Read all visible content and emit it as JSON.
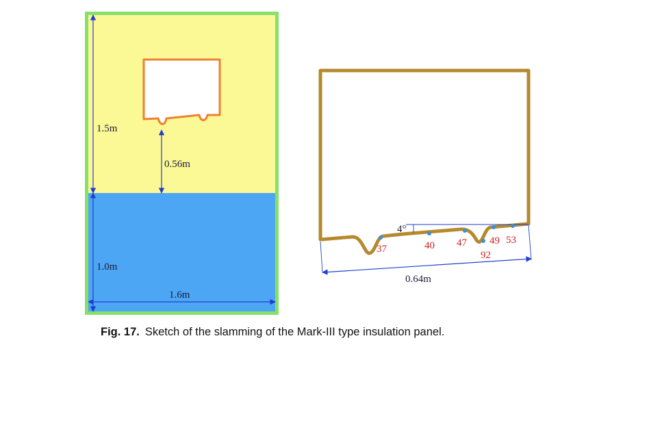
{
  "left_sketch": {
    "colors": {
      "border": "#86e06a",
      "air": "#fbf896",
      "water": "#4ca6f4",
      "panel_outline": "#f07f30",
      "dimension": "#1f3fd0"
    },
    "labels": {
      "tank_height_air": "1.5m",
      "drop_height": "0.56m",
      "water_depth": "1.0m",
      "tank_width": "1.6m"
    }
  },
  "right_sketch": {
    "colors": {
      "panel_outline": "#b5892d",
      "sensor_point": "#3b8fd6",
      "dimension": "#1f3fd0"
    },
    "labels": {
      "angle": "4°",
      "panel_width": "0.64m"
    },
    "sensors": [
      "37",
      "40",
      "47",
      "49",
      "53",
      "92"
    ]
  },
  "caption": {
    "figure_number": "Fig. 17.",
    "text": "Sketch of the slamming of the Mark-III type insulation panel."
  }
}
